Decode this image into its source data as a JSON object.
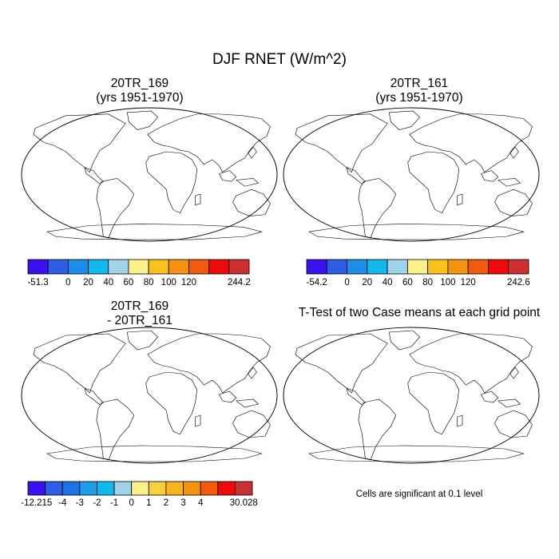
{
  "title": "DJF RNET (W/m^2)",
  "panels": [
    {
      "id": "p169",
      "title_line1": "20TR_169",
      "title_line2": "(yrs 1951-1970)"
    },
    {
      "id": "p161",
      "title_line1": "20TR_161",
      "title_line2": "(yrs 1951-1970)"
    },
    {
      "id": "pdiff",
      "title_line1": "20TR_169",
      "title_line2": "- 20TR_161"
    },
    {
      "id": "ptest",
      "title_line1": "T-Test of two Case means at each grid point",
      "title_line2": ""
    }
  ],
  "colorbars": [
    {
      "id": "cb1",
      "colors": [
        "#3b12ee",
        "#2d5ce6",
        "#1c8ee8",
        "#13b8ec",
        "#a2d3ea",
        "#fcf08a",
        "#f7c21c",
        "#f59212",
        "#f25a0d",
        "#ee0a0a",
        "#cc2f2f"
      ],
      "labels": [
        "-51.3",
        "0",
        "20",
        "40",
        "60",
        "80",
        "100",
        "120",
        "244.2"
      ]
    },
    {
      "id": "cb2",
      "colors": [
        "#3b12ee",
        "#2d5ce6",
        "#1c8ee8",
        "#13b8ec",
        "#a2d3ea",
        "#fcf08a",
        "#f7c21c",
        "#f59212",
        "#f25a0d",
        "#ee0a0a",
        "#cc2f2f"
      ],
      "labels": [
        "-54.2",
        "0",
        "20",
        "40",
        "60",
        "80",
        "100",
        "120",
        "242.6"
      ]
    },
    {
      "id": "cb3",
      "colors": [
        "#3b12ee",
        "#2d5ce6",
        "#1a72e6",
        "#1c9fe8",
        "#13b8ec",
        "#a2d3ea",
        "#fcf08a",
        "#f7d13c",
        "#f7b21c",
        "#f59212",
        "#f25a0d",
        "#ee0a0a",
        "#cc2f2f"
      ],
      "labels": [
        "-12.215",
        "-4",
        "-3",
        "-2",
        "-1",
        "0",
        "1",
        "2",
        "3",
        "4",
        "30.028"
      ]
    }
  ],
  "footnote": "Cells are significant at 0.1 level",
  "colors": {
    "land_high": "#cc2f2f",
    "land_warm": "#f25a0d",
    "land_mid": "#f7c21c",
    "land_cool": "#13b8ec",
    "land_cold": "#2d5ce6",
    "significant": "#ee0a0a",
    "outline": "#000000"
  }
}
